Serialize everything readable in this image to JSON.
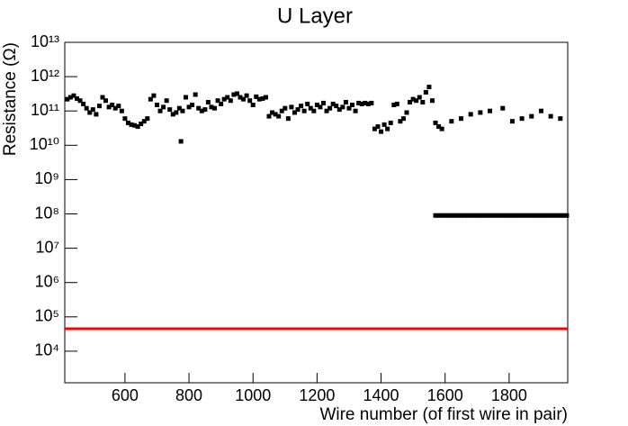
{
  "chart_data": {
    "type": "scatter",
    "title": "U Layer",
    "x_label": "Wire number (of first wire in pair)",
    "y_label": "Resistance (Ω)",
    "log_y": true,
    "xlim": [
      412,
      1983
    ],
    "xticks": [
      600,
      800,
      1000,
      1200,
      1400,
      1600,
      1800
    ],
    "ylim": [
      1200,
      10000000000000
    ],
    "yticks": [
      {
        "value": 10000,
        "label": "10⁴"
      },
      {
        "value": 100000,
        "label": "10⁵"
      },
      {
        "value": 1000000,
        "label": "10⁶"
      },
      {
        "value": 10000000,
        "label": "10⁷"
      },
      {
        "value": 100000000,
        "label": "10⁸"
      },
      {
        "value": 1000000000,
        "label": "10⁹"
      },
      {
        "value": 10000000000,
        "label": "10¹⁰"
      },
      {
        "value": 100000000000,
        "label": "10¹¹"
      },
      {
        "value": 1000000000000,
        "label": "10¹²"
      },
      {
        "value": 10000000000000,
        "label": "10¹³"
      }
    ],
    "threshold": 45000,
    "threshold_color": "#ff0000",
    "series": [
      {
        "color": "#000000",
        "x": [
          420,
          430,
          440,
          450,
          460,
          470,
          480,
          490,
          500,
          510,
          520,
          530,
          540,
          550,
          560,
          570,
          580,
          590,
          600,
          610,
          620,
          630,
          640,
          650,
          660,
          670,
          680,
          690,
          700,
          710,
          720,
          730,
          740,
          750,
          760,
          770,
          775,
          780,
          790,
          800,
          810,
          820,
          830,
          840,
          850,
          860,
          870,
          880,
          890,
          900,
          910,
          920,
          930,
          940,
          950,
          960,
          970,
          980,
          990,
          1000,
          1010,
          1020,
          1030,
          1040,
          1050,
          1060,
          1070,
          1080,
          1090,
          1100,
          1110,
          1120,
          1130,
          1140,
          1150,
          1160,
          1170,
          1180,
          1190,
          1200,
          1210,
          1220,
          1230,
          1240,
          1250,
          1260,
          1270,
          1280,
          1290,
          1300,
          1310,
          1320,
          1330,
          1340,
          1350,
          1360,
          1370,
          1380,
          1390,
          1400,
          1410,
          1420,
          1430,
          1440,
          1450,
          1460,
          1470,
          1480,
          1490,
          1500,
          1510,
          1520,
          1530,
          1540,
          1550,
          1560,
          1570,
          1580,
          1590,
          1620,
          1650,
          1680,
          1710,
          1740,
          1780,
          1810,
          1840,
          1870,
          1900,
          1930,
          1960
        ],
        "values": [
          220000000000.0,
          250000000000.0,
          280000000000.0,
          230000000000.0,
          200000000000.0,
          160000000000.0,
          120000000000.0,
          90000000000.0,
          110000000000.0,
          80000000000.0,
          140000000000.0,
          250000000000.0,
          200000000000.0,
          130000000000.0,
          150000000000.0,
          120000000000.0,
          140000000000.0,
          100000000000.0,
          60000000000.0,
          45000000000.0,
          40000000000.0,
          38000000000.0,
          35000000000.0,
          42000000000.0,
          50000000000.0,
          60000000000.0,
          220000000000.0,
          280000000000.0,
          150000000000.0,
          100000000000.0,
          130000000000.0,
          200000000000.0,
          110000000000.0,
          80000000000.0,
          90000000000.0,
          120000000000.0,
          13000000000.0,
          100000000000.0,
          250000000000.0,
          130000000000.0,
          150000000000.0,
          300000000000.0,
          120000000000.0,
          100000000000.0,
          110000000000.0,
          180000000000.0,
          130000000000.0,
          120000000000.0,
          200000000000.0,
          160000000000.0,
          220000000000.0,
          250000000000.0,
          200000000000.0,
          300000000000.0,
          320000000000.0,
          250000000000.0,
          220000000000.0,
          280000000000.0,
          200000000000.0,
          150000000000.0,
          260000000000.0,
          220000000000.0,
          230000000000.0,
          250000000000.0,
          70000000000.0,
          90000000000.0,
          80000000000.0,
          70000000000.0,
          100000000000.0,
          120000000000.0,
          60000000000.0,
          130000000000.0,
          90000000000.0,
          110000000000.0,
          140000000000.0,
          100000000000.0,
          160000000000.0,
          120000000000.0,
          100000000000.0,
          150000000000.0,
          130000000000.0,
          170000000000.0,
          100000000000.0,
          120000000000.0,
          160000000000.0,
          140000000000.0,
          110000000000.0,
          130000000000.0,
          180000000000.0,
          120000000000.0,
          150000000000.0,
          100000000000.0,
          170000000000.0,
          160000000000.0,
          170000000000.0,
          160000000000.0,
          170000000000.0,
          30000000000.0,
          35000000000.0,
          25000000000.0,
          40000000000.0,
          30000000000.0,
          45000000000.0,
          150000000000.0,
          160000000000.0,
          50000000000.0,
          60000000000.0,
          90000000000.0,
          180000000000.0,
          220000000000.0,
          200000000000.0,
          250000000000.0,
          180000000000.0,
          350000000000.0,
          500000000000.0,
          200000000000.0,
          45000000000.0,
          35000000000.0,
          30000000000.0,
          50000000000.0,
          60000000000.0,
          80000000000.0,
          90000000000.0,
          100000000000.0,
          120000000000.0,
          50000000000.0,
          60000000000.0,
          70000000000.0,
          100000000000.0,
          70000000000.0,
          60000000000.0
        ]
      },
      {
        "color": "#000000",
        "x": [
          1570,
          1580,
          1590,
          1600,
          1610,
          1620,
          1630,
          1640,
          1650,
          1660,
          1670,
          1680,
          1690,
          1700,
          1710,
          1720,
          1730,
          1740,
          1750,
          1760,
          1770,
          1780,
          1790,
          1800,
          1810,
          1820,
          1830,
          1840,
          1850,
          1860,
          1870,
          1880,
          1890,
          1900,
          1910,
          1920,
          1930,
          1940,
          1950,
          1960,
          1970,
          1980
        ],
        "values": [
          90000000.0,
          90000000.0,
          90000000.0,
          90000000.0,
          90000000.0,
          90000000.0,
          90000000.0,
          90000000.0,
          90000000.0,
          90000000.0,
          90000000.0,
          90000000.0,
          90000000.0,
          90000000.0,
          90000000.0,
          90000000.0,
          90000000.0,
          90000000.0,
          90000000.0,
          90000000.0,
          90000000.0,
          90000000.0,
          90000000.0,
          90000000.0,
          90000000.0,
          90000000.0,
          90000000.0,
          90000000.0,
          90000000.0,
          90000000.0,
          90000000.0,
          90000000.0,
          90000000.0,
          90000000.0,
          90000000.0,
          90000000.0,
          90000000.0,
          90000000.0,
          90000000.0,
          90000000.0,
          90000000.0,
          90000000.0
        ]
      }
    ]
  }
}
